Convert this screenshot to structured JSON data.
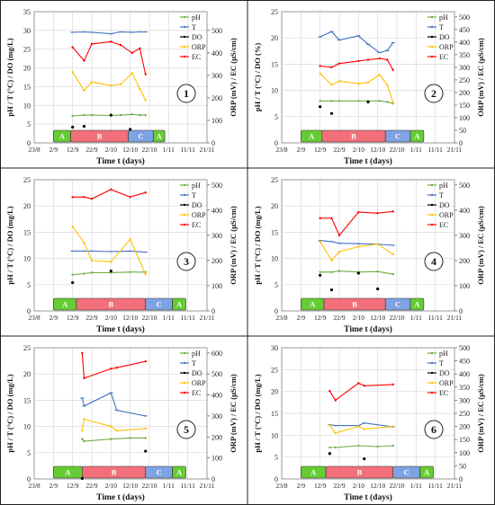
{
  "figure": {
    "x_tick_labels": [
      "23/8",
      "2/9",
      "12/9",
      "22/9",
      "2/10",
      "12/10",
      "22/10",
      "1/11",
      "11/11",
      "21/11"
    ],
    "xlabel": "Time t (days)",
    "series_colors": {
      "pH": "#70ad47",
      "T": "#4472c4",
      "DO": "#000000",
      "ORP": "#ffc000",
      "EC": "#ff0000"
    },
    "phase_colors": {
      "A": "#66cc33",
      "B": "#f2707a",
      "C": "#7ea3e2"
    }
  },
  "chart_data": [
    {
      "id": "1",
      "type": "line",
      "ylabel_left": "pH / T (°C) / DO (mg/L)",
      "ylabel_right": "ORP (mV) / EC (µS/cm)",
      "ylim_left": [
        0,
        35
      ],
      "yticks_left": [
        0,
        5,
        10,
        15,
        20,
        25,
        30,
        35
      ],
      "ylim_right": [
        0,
        583.33
      ],
      "yticks_right": [
        0,
        100,
        200,
        300,
        400,
        500
      ],
      "legend": [
        "pH",
        "T",
        "DO",
        "ORP",
        "EC"
      ],
      "phases": [
        {
          "label": "A",
          "start": "2/9",
          "end": "11/9"
        },
        {
          "label": "B",
          "start": "11/9",
          "end": "11/10"
        },
        {
          "label": "C",
          "start": "11/10",
          "end": "24/10"
        },
        {
          "label": "A",
          "start": "24/10",
          "end": "30/10"
        }
      ],
      "series": [
        {
          "name": "pH",
          "axis": "left",
          "x": [
            "12/9",
            "18/9",
            "22/9",
            "2/10",
            "7/10",
            "13/10",
            "17/10",
            "20/10"
          ],
          "y": [
            7.2,
            7.4,
            7.4,
            7.3,
            7.4,
            7.6,
            7.4,
            7.4
          ]
        },
        {
          "name": "T",
          "axis": "left",
          "x": [
            "12/9",
            "18/9",
            "22/9",
            "2/10",
            "7/10",
            "13/10",
            "17/10",
            "20/10"
          ],
          "y": [
            29.5,
            29.6,
            29.5,
            29.1,
            29.6,
            29.5,
            29.6,
            29.6
          ]
        },
        {
          "name": "DO",
          "axis": "left",
          "x": [
            "12/9",
            "18/9",
            "2/10",
            "12/10"
          ],
          "y": [
            4.2,
            4.4,
            7.4,
            3.6
          ],
          "markers_only": true
        },
        {
          "name": "ORP",
          "axis": "right",
          "x": [
            "12/9",
            "18/9",
            "22/9",
            "2/10",
            "7/10",
            "13/10",
            "17/10",
            "20/10"
          ],
          "y": [
            315,
            233,
            270,
            255,
            260,
            310,
            240,
            190
          ]
        },
        {
          "name": "EC",
          "axis": "right",
          "x": [
            "12/9",
            "18/9",
            "22/9",
            "2/10",
            "7/10",
            "13/10",
            "17/10",
            "20/10"
          ],
          "y": [
            425,
            365,
            440,
            450,
            435,
            400,
            420,
            305
          ]
        }
      ]
    },
    {
      "id": "2",
      "type": "line",
      "ylabel_left": "pH / T (°C) / DO (%)",
      "ylabel_right": "ORP (mV) / EC (µS/cm)",
      "ylim_left": [
        0,
        25
      ],
      "yticks_left": [
        0,
        5,
        10,
        15,
        20,
        25
      ],
      "ylim_right": [
        0,
        520.83
      ],
      "yticks_right": [
        0,
        50,
        100,
        150,
        200,
        250,
        300,
        350,
        400,
        450,
        500
      ],
      "legend": [
        "pH",
        "T",
        "DO",
        "ORP",
        "EC"
      ],
      "phases": [
        {
          "label": "A",
          "start": "2/9",
          "end": "13/9"
        },
        {
          "label": "B",
          "start": "13/9",
          "end": "16/10"
        },
        {
          "label": "C",
          "start": "16/10",
          "end": "29/10"
        },
        {
          "label": "A",
          "start": "29/10",
          "end": "5/11"
        }
      ],
      "series": [
        {
          "name": "pH",
          "axis": "left",
          "x": [
            "12/9",
            "18/9",
            "22/9",
            "2/10",
            "7/10",
            "13/10",
            "17/10",
            "20/10"
          ],
          "y": [
            8,
            8,
            8,
            8,
            8,
            8,
            7.8,
            7.5
          ]
        },
        {
          "name": "T",
          "axis": "left",
          "x": [
            "12/9",
            "18/9",
            "22/9",
            "2/10",
            "7/10",
            "13/10",
            "17/10",
            "20/10"
          ],
          "y": [
            20.2,
            21.2,
            19.6,
            20.4,
            18.8,
            17.2,
            17.6,
            19.1
          ]
        },
        {
          "name": "DO",
          "axis": "left",
          "x": [
            "12/9",
            "18/9",
            "7/10"
          ],
          "y": [
            6.9,
            5.6,
            7.8
          ],
          "markers_only": true
        },
        {
          "name": "ORP",
          "axis": "right",
          "x": [
            "12/9",
            "18/9",
            "22/9",
            "2/10",
            "7/10",
            "13/10",
            "17/10",
            "20/10"
          ],
          "y": [
            275,
            230,
            245,
            235,
            240,
            270,
            230,
            160
          ]
        },
        {
          "name": "EC",
          "axis": "right",
          "x": [
            "12/9",
            "18/9",
            "22/9",
            "2/10",
            "7/10",
            "13/10",
            "17/10",
            "20/10"
          ],
          "y": [
            305,
            300,
            315,
            325,
            330,
            335,
            330,
            290
          ]
        }
      ]
    },
    {
      "id": "3",
      "type": "line",
      "ylabel_left": "pH / T (°C) / DO (mg/L)",
      "ylabel_right": "ORP (mV) / EC (µS/cm)",
      "ylim_left": [
        0,
        25
      ],
      "yticks_left": [
        0,
        5,
        10,
        15,
        20,
        25
      ],
      "ylim_right": [
        0,
        520.83
      ],
      "yticks_right": [
        0,
        100,
        200,
        300,
        400,
        500
      ],
      "legend": [
        "pH",
        "T",
        "DO",
        "ORP",
        "EC"
      ],
      "phases": [
        {
          "label": "A",
          "start": "2/9",
          "end": "14/9"
        },
        {
          "label": "B",
          "start": "14/9",
          "end": "20/10"
        },
        {
          "label": "C",
          "start": "20/10",
          "end": "3/11"
        },
        {
          "label": "A",
          "start": "3/11",
          "end": "10/11"
        }
      ],
      "series": [
        {
          "name": "pH",
          "axis": "left",
          "x": [
            "12/9",
            "18/9",
            "22/9",
            "2/10",
            "12/10",
            "20/10"
          ],
          "y": [
            6.9,
            7.1,
            7.3,
            7.3,
            7.4,
            7.4
          ]
        },
        {
          "name": "T",
          "axis": "left",
          "x": [
            "12/9",
            "18/9",
            "22/9",
            "2/10",
            "12/10",
            "20/10"
          ],
          "y": [
            11.4,
            11.4,
            11.4,
            11.3,
            11.4,
            11.2
          ]
        },
        {
          "name": "DO",
          "axis": "left",
          "x": [
            "12/9",
            "2/10"
          ],
          "y": [
            5.4,
            7.6
          ],
          "markers_only": true
        },
        {
          "name": "ORP",
          "axis": "right",
          "x": [
            "12/9",
            "18/9",
            "22/9",
            "2/10",
            "12/10",
            "20/10"
          ],
          "y": [
            335,
            270,
            200,
            195,
            285,
            145
          ]
        },
        {
          "name": "EC",
          "axis": "right",
          "x": [
            "12/9",
            "18/9",
            "22/9",
            "2/10",
            "12/10",
            "20/10"
          ],
          "y": [
            452,
            452,
            445,
            482,
            452,
            470
          ]
        }
      ]
    },
    {
      "id": "4",
      "type": "line",
      "ylabel_left": "pH / T (°C) / DO (mg/L)",
      "ylabel_right": "ORP (mV) / EC (µS/cm)",
      "ylim_left": [
        0,
        25
      ],
      "yticks_left": [
        0,
        5,
        10,
        15,
        20,
        25
      ],
      "ylim_right": [
        0,
        520.83
      ],
      "yticks_right": [
        0,
        100,
        200,
        300,
        400,
        500
      ],
      "legend": [
        "pH",
        "T",
        "DO",
        "ORP",
        "EC"
      ],
      "phases": [
        {
          "label": "A",
          "start": "2/9",
          "end": "14/9"
        },
        {
          "label": "B",
          "start": "14/9",
          "end": "16/10"
        },
        {
          "label": "C",
          "start": "16/10",
          "end": "29/10"
        },
        {
          "label": "A",
          "start": "29/10",
          "end": "5/11"
        }
      ],
      "series": [
        {
          "name": "pH",
          "axis": "left",
          "x": [
            "12/9",
            "18/9",
            "22/9",
            "2/10",
            "12/10",
            "20/10"
          ],
          "y": [
            7.4,
            7.4,
            7.6,
            7.4,
            7.5,
            7.0
          ]
        },
        {
          "name": "T",
          "axis": "left",
          "x": [
            "12/9",
            "18/9",
            "22/9",
            "2/10",
            "12/10",
            "20/10"
          ],
          "y": [
            13.4,
            13.2,
            12.9,
            12.8,
            12.7,
            12.5
          ]
        },
        {
          "name": "DO",
          "axis": "left",
          "x": [
            "12/9",
            "18/9",
            "2/10",
            "12/10"
          ],
          "y": [
            6.8,
            4.0,
            7.2,
            4.2
          ],
          "markers_only": true
        },
        {
          "name": "ORP",
          "axis": "right",
          "x": [
            "12/9",
            "18/9",
            "22/9",
            "2/10",
            "12/10",
            "20/10"
          ],
          "y": [
            275,
            200,
            235,
            255,
            265,
            225
          ]
        },
        {
          "name": "EC",
          "axis": "right",
          "x": [
            "12/9",
            "18/9",
            "22/9",
            "2/10",
            "12/10",
            "20/10"
          ],
          "y": [
            368,
            368,
            300,
            392,
            388,
            395
          ]
        }
      ]
    },
    {
      "id": "5",
      "type": "line",
      "ylabel_left": "pH / T (°C) / DO (mg/L)",
      "ylabel_right": "ORP (mV) / EC (µS/cm)",
      "ylim_left": [
        0,
        25
      ],
      "yticks_left": [
        0,
        5,
        10,
        15,
        20,
        25
      ],
      "ylim_right": [
        0,
        625
      ],
      "yticks_right": [
        0,
        100,
        200,
        300,
        400,
        500,
        600
      ],
      "legend": [
        "pH",
        "T",
        "DO",
        "ORP",
        "EC"
      ],
      "phases": [
        {
          "label": "A",
          "start": "2/9",
          "end": "17/9"
        },
        {
          "label": "B",
          "start": "17/9",
          "end": "20/10"
        },
        {
          "label": "C",
          "start": "20/10",
          "end": "3/11"
        },
        {
          "label": "A",
          "start": "3/11",
          "end": "10/11"
        }
      ],
      "series": [
        {
          "name": "pH",
          "axis": "left",
          "x": [
            "17/9",
            "18/9",
            "2/10",
            "12/10",
            "20/10"
          ],
          "y": [
            7.6,
            7.2,
            7.6,
            7.8,
            7.8
          ]
        },
        {
          "name": "T",
          "axis": "left",
          "x": [
            "17/9",
            "18/9",
            "2/10",
            "5/10",
            "20/10"
          ],
          "y": [
            15.4,
            13.9,
            16.4,
            13.1,
            12.0
          ]
        },
        {
          "name": "DO",
          "axis": "left",
          "x": [
            "17/9",
            "20/10"
          ],
          "y": [
            0.1,
            5.3
          ],
          "markers_only": true
        },
        {
          "name": "ORP",
          "axis": "right",
          "x": [
            "17/9",
            "18/9",
            "2/10",
            "5/10",
            "20/10"
          ],
          "y": [
            230,
            285,
            250,
            230,
            240
          ]
        },
        {
          "name": "EC",
          "axis": "right",
          "x": [
            "17/9",
            "18/9",
            "2/10",
            "5/10",
            "20/10"
          ],
          "y": [
            600,
            480,
            525,
            530,
            560
          ]
        }
      ]
    },
    {
      "id": "6",
      "type": "line",
      "ylabel_left": "pH / T (°C) / DO (mg/L)",
      "ylabel_right": "ORP (mV) / EC (µS/cm)",
      "ylim_left": [
        0,
        30
      ],
      "yticks_left": [
        0,
        5,
        10,
        15,
        20,
        25,
        30
      ],
      "ylim_right": [
        0,
        500
      ],
      "yticks_right": [
        0,
        50,
        100,
        150,
        200,
        250,
        300,
        350,
        400,
        450,
        500
      ],
      "legend": [
        "pH",
        "T",
        "DO",
        "ORP",
        "EC"
      ],
      "phases": [
        {
          "label": "A",
          "start": "2/9",
          "end": "15/9"
        },
        {
          "label": "B",
          "start": "15/9",
          "end": "20/10"
        },
        {
          "label": "C",
          "start": "20/10",
          "end": "3/11"
        },
        {
          "label": "A",
          "start": "3/11",
          "end": "10/11"
        }
      ],
      "series": [
        {
          "name": "pH",
          "axis": "left",
          "x": [
            "17/9",
            "20/9",
            "2/10",
            "12/10",
            "20/10"
          ],
          "y": [
            7.2,
            7.2,
            7.6,
            7.4,
            7.6
          ]
        },
        {
          "name": "T",
          "axis": "left",
          "x": [
            "17/9",
            "20/9",
            "2/10",
            "5/10",
            "20/10"
          ],
          "y": [
            12.4,
            12.2,
            12.2,
            12.8,
            11.9
          ]
        },
        {
          "name": "DO",
          "axis": "left",
          "x": [
            "17/9",
            "5/10"
          ],
          "y": [
            5.8,
            4.6
          ],
          "markers_only": true
        },
        {
          "name": "ORP",
          "axis": "right",
          "x": [
            "17/9",
            "20/9",
            "2/10",
            "5/10",
            "20/10"
          ],
          "y": [
            205,
            175,
            200,
            190,
            200
          ]
        },
        {
          "name": "EC",
          "axis": "right",
          "x": [
            "17/9",
            "20/9",
            "2/10",
            "5/10",
            "20/10"
          ],
          "y": [
            335,
            300,
            365,
            355,
            360
          ]
        }
      ]
    }
  ]
}
